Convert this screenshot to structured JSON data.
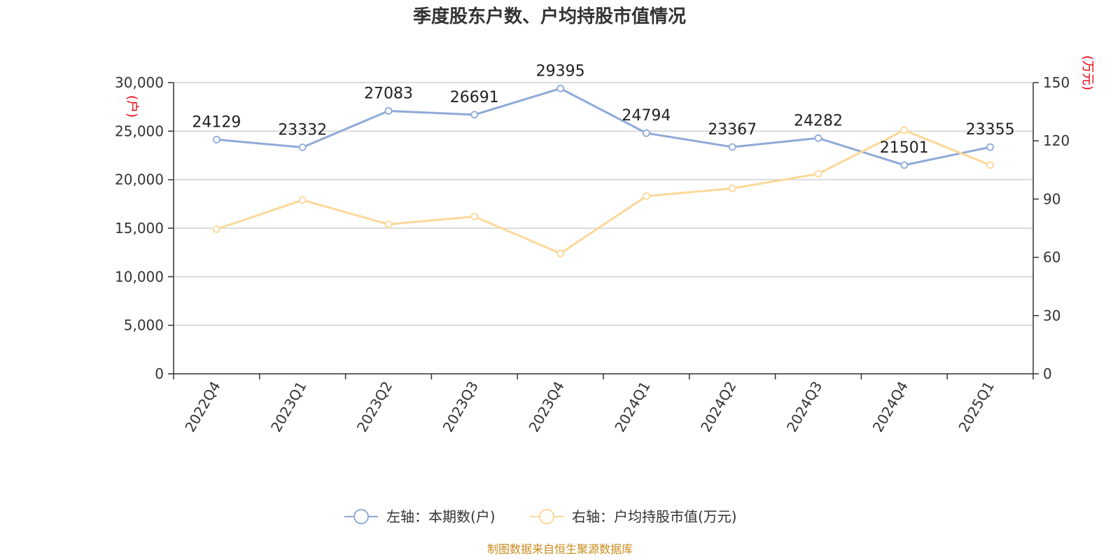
{
  "chart_data": {
    "type": "line",
    "title": "季度股东户数、户均持股市值情况",
    "categories": [
      "2022Q4",
      "2023Q1",
      "2023Q2",
      "2023Q3",
      "2023Q4",
      "2024Q1",
      "2024Q2",
      "2024Q3",
      "2024Q4",
      "2025Q1"
    ],
    "left_axis": {
      "unit": "(户)",
      "ylim": [
        0,
        30000
      ],
      "ticks": [
        "0",
        "5,000",
        "10,000",
        "15,000",
        "20,000",
        "25,000",
        "30,000"
      ]
    },
    "right_axis": {
      "unit": "(万元)",
      "ylim": [
        0,
        150
      ],
      "ticks": [
        "0",
        "30",
        "60",
        "90",
        "120",
        "150"
      ]
    },
    "series": [
      {
        "name": "左轴：本期数(户)",
        "axis": "left",
        "color": "#8eaad8",
        "values": [
          24129,
          23332,
          27083,
          26691,
          29395,
          24794,
          23367,
          24282,
          21501,
          23355
        ],
        "labels": [
          "24129",
          "23332",
          "27083",
          "26691",
          "29395",
          "24794",
          "23367",
          "24282",
          "21501",
          "23355"
        ]
      },
      {
        "name": "右轴：户均持股市值(万元)",
        "axis": "right",
        "color": "#fcd898",
        "values": [
          74.5,
          89.5,
          77,
          81,
          62,
          91.5,
          95.5,
          103,
          125.5,
          107.5
        ]
      }
    ],
    "grid": true,
    "legend_position": "bottom"
  },
  "footer": {
    "source": "制图数据来自恒生聚源数据库"
  }
}
